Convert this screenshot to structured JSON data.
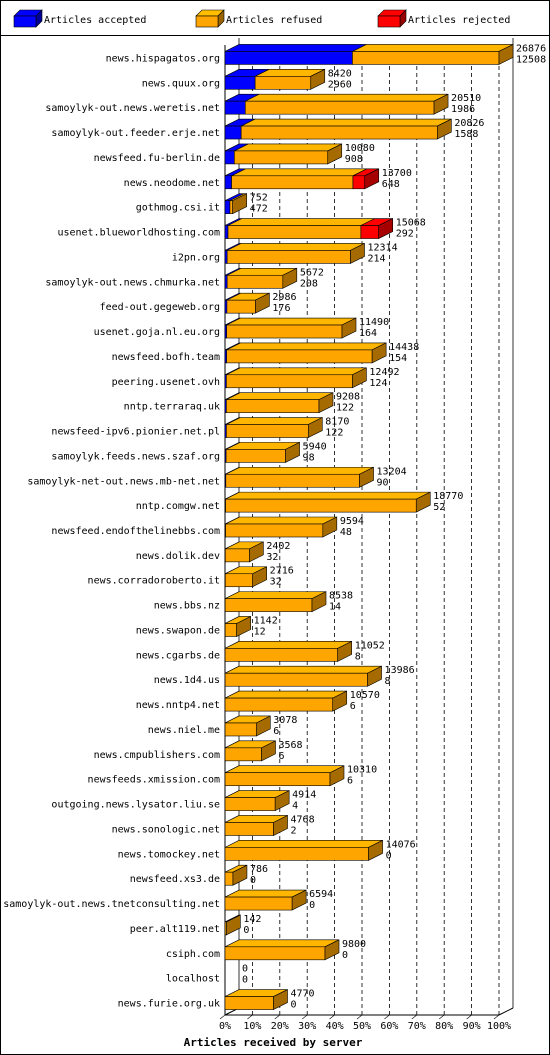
{
  "chart_data": {
    "type": "bar",
    "title": "",
    "xlabel": "Articles received by server",
    "ylabel": "",
    "xlim": [
      0,
      100
    ],
    "x_ticks": [
      "0%",
      "10%",
      "20%",
      "30%",
      "40%",
      "50%",
      "60%",
      "70%",
      "80%",
      "90%",
      "100%"
    ],
    "grid": true,
    "legend_position": "top",
    "legend": [
      {
        "name": "Articles accepted",
        "color": "#0000ff"
      },
      {
        "name": "Articles refused",
        "color": "#ffa500"
      },
      {
        "name": "Articles rejected",
        "color": "#ff0000"
      }
    ],
    "rows": [
      {
        "server": "news.hispagatos.org",
        "total": "26876",
        "accepted": "12508",
        "acc_pct": 46.5,
        "ref_pct": 53.5,
        "rej_pct": 0
      },
      {
        "server": "news.quux.org",
        "total": "8420",
        "accepted": "2960",
        "acc_pct": 11,
        "ref_pct": 20.3,
        "rej_pct": 0
      },
      {
        "server": "samoylyk-out.news.weretis.net",
        "total": "20510",
        "accepted": "1986",
        "acc_pct": 7.4,
        "ref_pct": 68.9,
        "rej_pct": 0
      },
      {
        "server": "samoylyk-out.feeder.erje.net",
        "total": "20826",
        "accepted": "1588",
        "acc_pct": 5.9,
        "ref_pct": 71.6,
        "rej_pct": 0
      },
      {
        "server": "newsfeed.fu-berlin.de",
        "total": "10080",
        "accepted": "908",
        "acc_pct": 3.4,
        "ref_pct": 34.1,
        "rej_pct": 0
      },
      {
        "server": "news.neodome.net",
        "total": "13700",
        "accepted": "648",
        "acc_pct": 2.4,
        "ref_pct": 44.3,
        "rej_pct": 4.3
      },
      {
        "server": "gothmog.csi.it",
        "total": "752",
        "accepted": "472",
        "acc_pct": 1.8,
        "ref_pct": 1,
        "rej_pct": 0
      },
      {
        "server": "usenet.blueworldhosting.com",
        "total": "15068",
        "accepted": "292",
        "acc_pct": 1.1,
        "ref_pct": 48.5,
        "rej_pct": 6.5
      },
      {
        "server": "i2pn.org",
        "total": "12314",
        "accepted": "214",
        "acc_pct": 0.8,
        "ref_pct": 45,
        "rej_pct": 0
      },
      {
        "server": "samoylyk-out.news.chmurka.net",
        "total": "5672",
        "accepted": "208",
        "acc_pct": 0.8,
        "ref_pct": 20.3,
        "rej_pct": 0
      },
      {
        "server": "feed-out.gegeweb.org",
        "total": "2986",
        "accepted": "176",
        "acc_pct": 0.7,
        "ref_pct": 10.4,
        "rej_pct": 0
      },
      {
        "server": "usenet.goja.nl.eu.org",
        "total": "11490",
        "accepted": "164",
        "acc_pct": 0.6,
        "ref_pct": 42.1,
        "rej_pct": 0
      },
      {
        "server": "newsfeed.bofh.team",
        "total": "14438",
        "accepted": "154",
        "acc_pct": 0.6,
        "ref_pct": 53.1,
        "rej_pct": 0
      },
      {
        "server": "peering.usenet.ovh",
        "total": "12492",
        "accepted": "124",
        "acc_pct": 0.5,
        "ref_pct": 46,
        "rej_pct": 0
      },
      {
        "server": "nntp.terraraq.uk",
        "total": "9208",
        "accepted": "122",
        "acc_pct": 0.5,
        "ref_pct": 33.8,
        "rej_pct": 0
      },
      {
        "server": "newsfeed-ipv6.pionier.net.pl",
        "total": "8170",
        "accepted": "122",
        "acc_pct": 0.5,
        "ref_pct": 29.9,
        "rej_pct": 0
      },
      {
        "server": "samoylyk.feeds.news.szaf.org",
        "total": "5940",
        "accepted": "98",
        "acc_pct": 0.4,
        "ref_pct": 21.7,
        "rej_pct": 0
      },
      {
        "server": "samoylyk-net-out.news.mb-net.net",
        "total": "13204",
        "accepted": "90",
        "acc_pct": 0.3,
        "ref_pct": 48.8,
        "rej_pct": 0
      },
      {
        "server": "nntp.comgw.net",
        "total": "18770",
        "accepted": "52",
        "acc_pct": 0.2,
        "ref_pct": 69.6,
        "rej_pct": 0
      },
      {
        "server": "newsfeed.endofthelinebbs.com",
        "total": "9594",
        "accepted": "48",
        "acc_pct": 0.2,
        "ref_pct": 35.5,
        "rej_pct": 0
      },
      {
        "server": "news.dolik.dev",
        "total": "2402",
        "accepted": "32",
        "acc_pct": 0.1,
        "ref_pct": 8.8,
        "rej_pct": 0
      },
      {
        "server": "news.corradoroberto.it",
        "total": "2716",
        "accepted": "32",
        "acc_pct": 0.1,
        "ref_pct": 10,
        "rej_pct": 0
      },
      {
        "server": "news.bbs.nz",
        "total": "8538",
        "accepted": "14",
        "acc_pct": 0.05,
        "ref_pct": 31.7,
        "rej_pct": 0
      },
      {
        "server": "news.swapon.de",
        "total": "1142",
        "accepted": "12",
        "acc_pct": 0.05,
        "ref_pct": 4.2,
        "rej_pct": 0
      },
      {
        "server": "news.cgarbs.de",
        "total": "11052",
        "accepted": "8",
        "acc_pct": 0.03,
        "ref_pct": 41.1,
        "rej_pct": 0
      },
      {
        "server": "news.1d4.us",
        "total": "13986",
        "accepted": "8",
        "acc_pct": 0.03,
        "ref_pct": 52,
        "rej_pct": 0
      },
      {
        "server": "news.nntp4.net",
        "total": "10570",
        "accepted": "6",
        "acc_pct": 0.02,
        "ref_pct": 39.3,
        "rej_pct": 0
      },
      {
        "server": "news.niel.me",
        "total": "3078",
        "accepted": "6",
        "acc_pct": 0.02,
        "ref_pct": 11.4,
        "rej_pct": 0
      },
      {
        "server": "news.cmpublishers.com",
        "total": "3568",
        "accepted": "6",
        "acc_pct": 0.02,
        "ref_pct": 13.3,
        "rej_pct": 0
      },
      {
        "server": "newsfeeds.xmission.com",
        "total": "10310",
        "accepted": "6",
        "acc_pct": 0.02,
        "ref_pct": 38.3,
        "rej_pct": 0
      },
      {
        "server": "outgoing.news.lysator.liu.se",
        "total": "4914",
        "accepted": "4",
        "acc_pct": 0.01,
        "ref_pct": 18.3,
        "rej_pct": 0
      },
      {
        "server": "news.sonologic.net",
        "total": "4768",
        "accepted": "2",
        "acc_pct": 0.01,
        "ref_pct": 17.7,
        "rej_pct": 0
      },
      {
        "server": "news.tomockey.net",
        "total": "14076",
        "accepted": "0",
        "acc_pct": 0,
        "ref_pct": 52.4,
        "rej_pct": 0
      },
      {
        "server": "newsfeed.xs3.de",
        "total": "786",
        "accepted": "0",
        "acc_pct": 0,
        "ref_pct": 2.9,
        "rej_pct": 0
      },
      {
        "server": "samoylyk-out.news.tnetconsulting.net",
        "total": "6594",
        "accepted": "0",
        "acc_pct": 0,
        "ref_pct": 24.5,
        "rej_pct": 0
      },
      {
        "server": "peer.alt119.net",
        "total": "142",
        "accepted": "0",
        "acc_pct": 0,
        "ref_pct": 0.5,
        "rej_pct": 0
      },
      {
        "server": "csiph.com",
        "total": "9800",
        "accepted": "0",
        "acc_pct": 0,
        "ref_pct": 36.5,
        "rej_pct": 0
      },
      {
        "server": "localhost",
        "total": "0",
        "accepted": "0",
        "acc_pct": 0,
        "ref_pct": 0,
        "rej_pct": 0
      },
      {
        "server": "news.furie.org.uk",
        "total": "4770",
        "accepted": "0",
        "acc_pct": 0,
        "ref_pct": 17.7,
        "rej_pct": 0
      }
    ]
  }
}
